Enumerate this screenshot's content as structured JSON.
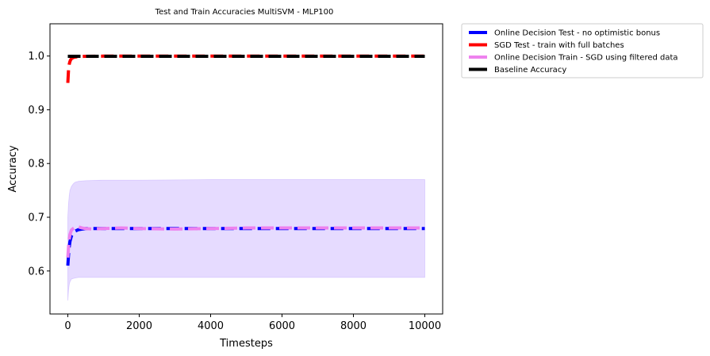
{
  "chart_data": {
    "type": "line",
    "title": "Test and Train Accuracies MultiSVM - MLP100",
    "xlabel": "Timesteps",
    "ylabel": "Accuracy",
    "xlim": [
      -500,
      10500
    ],
    "ylim": [
      0.52,
      1.06
    ],
    "xticks": [
      "0",
      "2000",
      "4000",
      "6000",
      "8000",
      "10000"
    ],
    "yticks": [
      "0.6",
      "0.7",
      "0.8",
      "0.9",
      "1.0"
    ],
    "grid": false,
    "legend_position": "outside top-right",
    "series": [
      {
        "name": "Online Decision Test - no optimistic bonus",
        "color": "#0000ff",
        "x": [
          0,
          20,
          40,
          60,
          80,
          100,
          150,
          200,
          300,
          400,
          500,
          700,
          1000,
          1500,
          2000,
          3000,
          4000,
          5000,
          6000,
          7000,
          8000,
          9000,
          10000
        ],
        "y": [
          0.61,
          0.63,
          0.645,
          0.655,
          0.66,
          0.665,
          0.67,
          0.674,
          0.677,
          0.678,
          0.679,
          0.679,
          0.679,
          0.679,
          0.679,
          0.679,
          0.679,
          0.679,
          0.679,
          0.679,
          0.679,
          0.679,
          0.679
        ]
      },
      {
        "name": "SGD Test - train with full batches",
        "color": "#ff0000",
        "x": [
          0,
          20,
          40,
          60,
          80,
          100,
          150,
          200,
          300,
          500,
          1000,
          2000,
          3000,
          4000,
          5000,
          6000,
          7000,
          8000,
          9000,
          10000
        ],
        "y": [
          0.95,
          0.975,
          0.985,
          0.99,
          0.993,
          0.995,
          0.997,
          0.998,
          0.999,
          0.9995,
          0.9998,
          0.9998,
          0.9998,
          0.9998,
          0.9998,
          0.9998,
          0.9998,
          0.9998,
          0.9998,
          0.9998
        ]
      },
      {
        "name": "Online Decision Train - SGD using filtered data",
        "color": "#ee82ee",
        "x": [
          0,
          30,
          60,
          100,
          150,
          200,
          250,
          300,
          400,
          500,
          700,
          1000,
          1500,
          2000,
          3000,
          4000,
          5000,
          6000,
          7000,
          8000,
          9000,
          10000
        ],
        "y": [
          0.625,
          0.655,
          0.668,
          0.676,
          0.679,
          0.681,
          0.683,
          0.682,
          0.68,
          0.679,
          0.678,
          0.679,
          0.68,
          0.679,
          0.678,
          0.679,
          0.68,
          0.68,
          0.68,
          0.68,
          0.68,
          0.68
        ],
        "band": {
          "color": "#c7b0ff",
          "x": [
            0,
            20,
            40,
            60,
            100,
            150,
            200,
            300,
            500,
            1000,
            2000,
            4000,
            6000,
            8000,
            10000
          ],
          "upper": [
            0.7,
            0.725,
            0.74,
            0.75,
            0.757,
            0.762,
            0.765,
            0.767,
            0.768,
            0.769,
            0.769,
            0.77,
            0.77,
            0.77,
            0.77
          ],
          "lower": [
            0.545,
            0.565,
            0.575,
            0.58,
            0.585,
            0.586,
            0.587,
            0.588,
            0.588,
            0.588,
            0.588,
            0.588,
            0.588,
            0.588,
            0.588
          ]
        }
      },
      {
        "name": "Baseline Accuracy",
        "color": "#000000",
        "x": [
          0,
          10000
        ],
        "y": [
          0.9995,
          0.9995
        ]
      }
    ]
  }
}
